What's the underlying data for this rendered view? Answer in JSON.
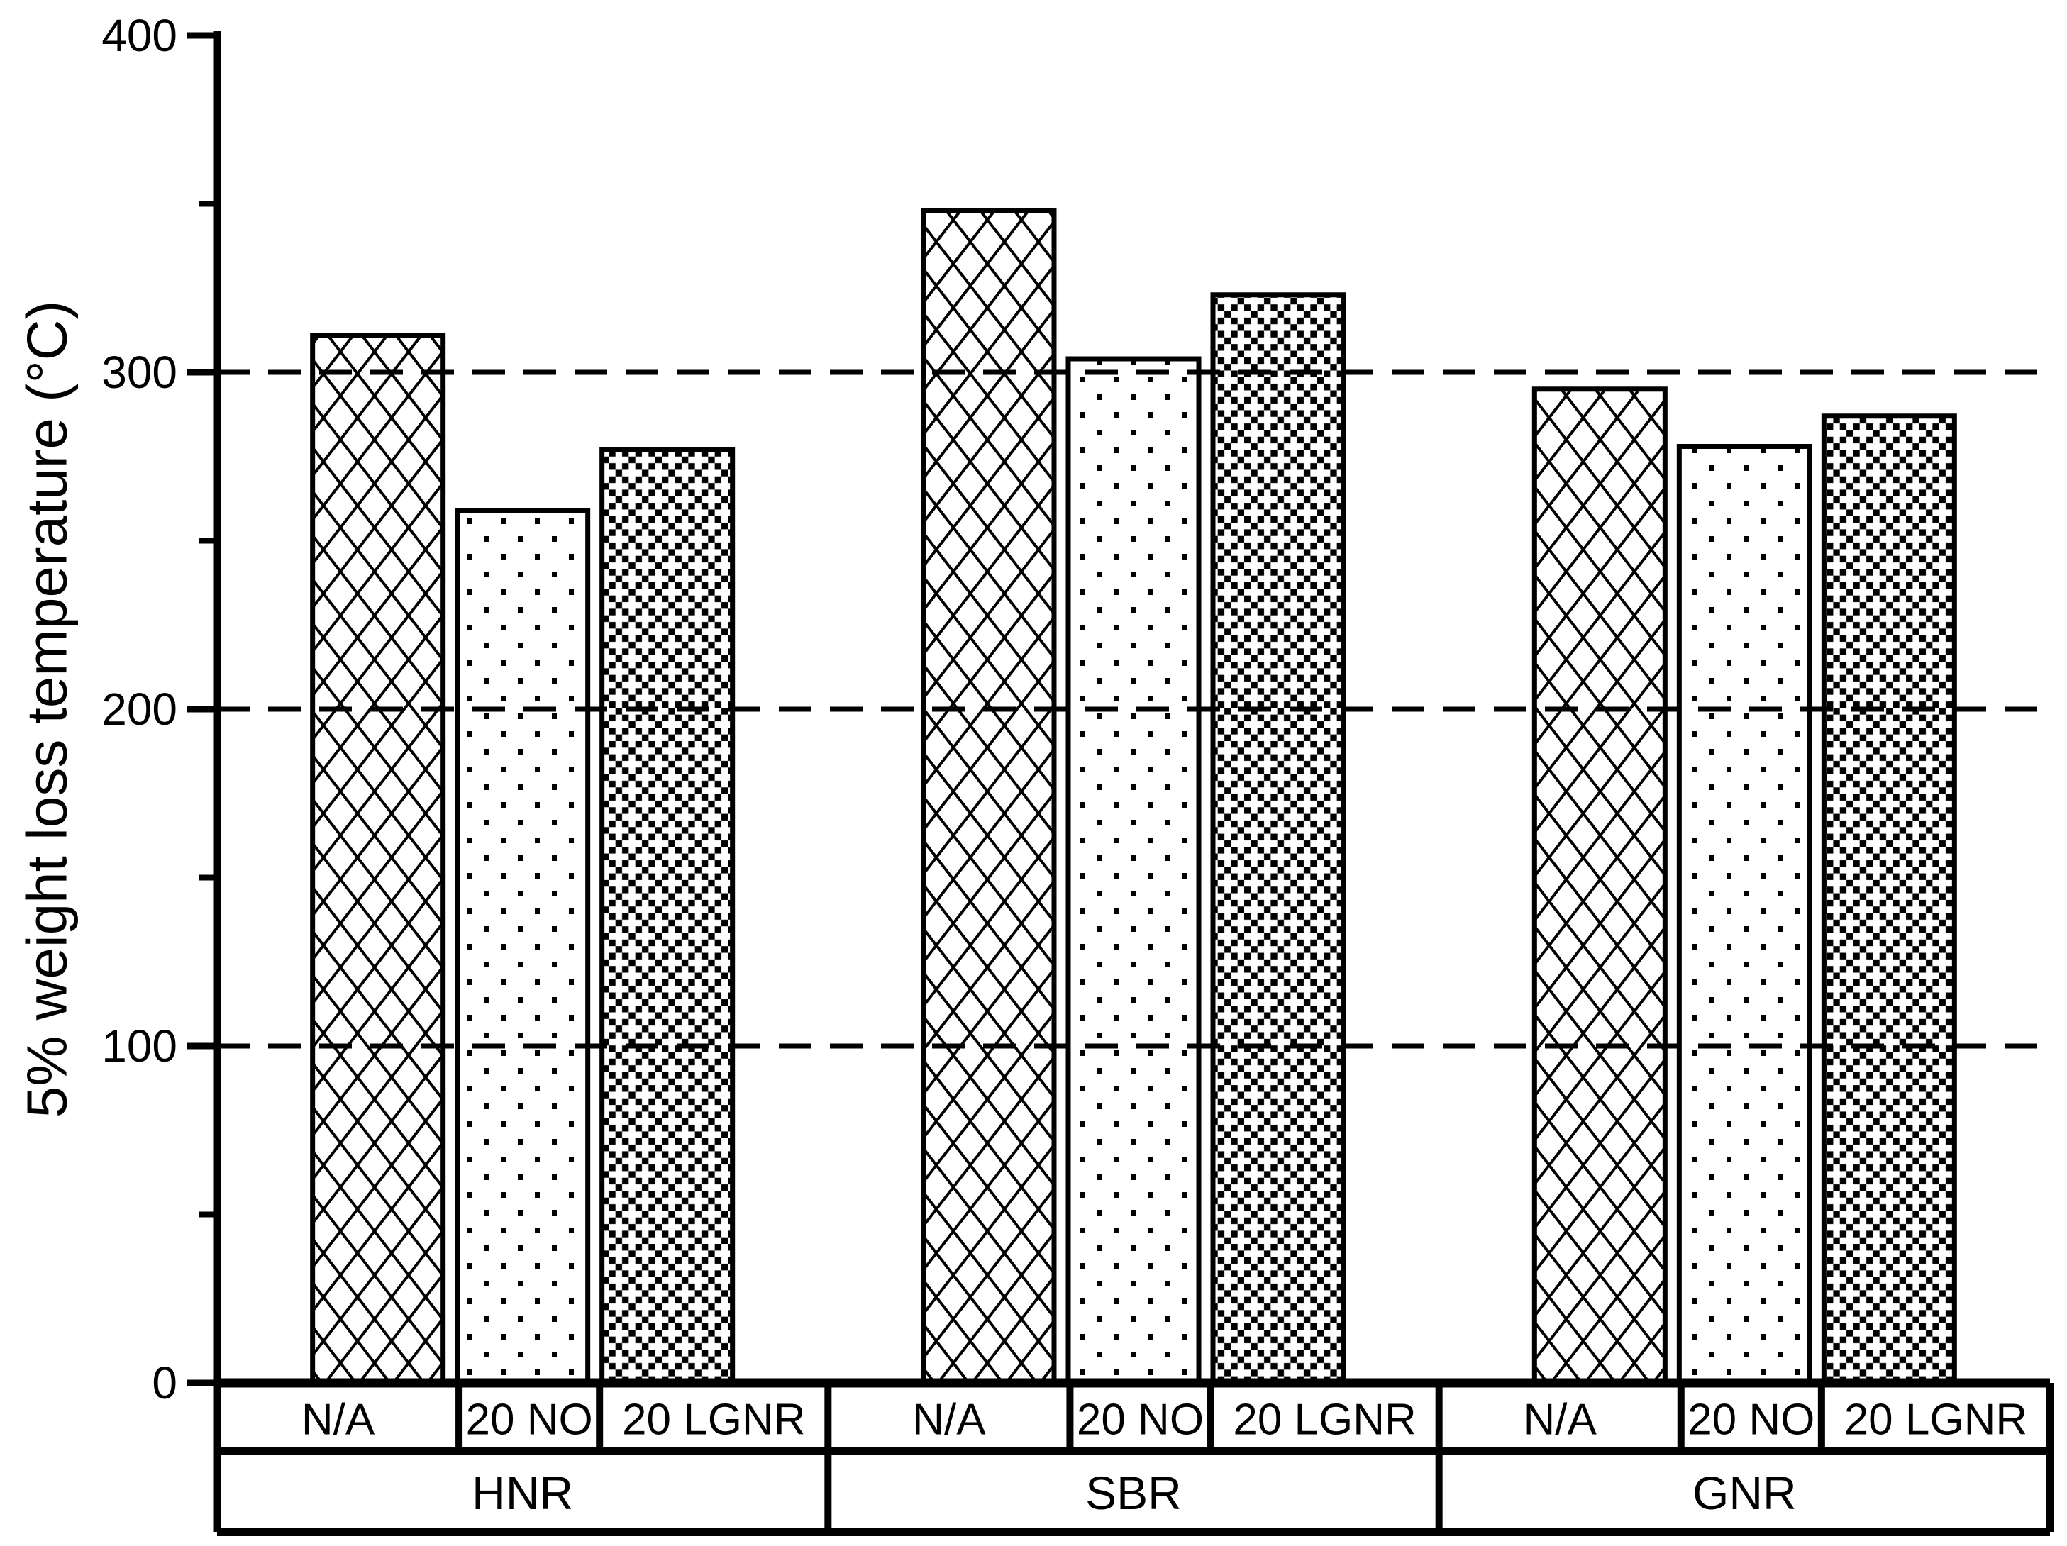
{
  "figure": {
    "background": "#ffffff",
    "foreground": "#000000"
  },
  "chart_data": {
    "type": "bar",
    "title": "",
    "xlabel": "",
    "ylabel": "5% weight loss temperature (°C)",
    "ylim": [
      0,
      400
    ],
    "y_major_ticks": [
      0,
      100,
      200,
      300,
      400
    ],
    "y_minor_ticks": [
      50,
      150,
      250,
      350
    ],
    "gridlines_y": [
      100,
      200,
      300
    ],
    "grid_style": "dashed",
    "legend_position": "none",
    "categories": [
      "HNR",
      "SBR",
      "GNR"
    ],
    "series": [
      {
        "name": "N/A",
        "pattern": "crosshatch",
        "values": [
          311,
          348,
          295
        ]
      },
      {
        "name": "20 NO",
        "pattern": "dots",
        "values": [
          259,
          304,
          278
        ]
      },
      {
        "name": "20 LGNR",
        "pattern": "checker",
        "values": [
          277,
          323,
          287
        ]
      }
    ]
  }
}
